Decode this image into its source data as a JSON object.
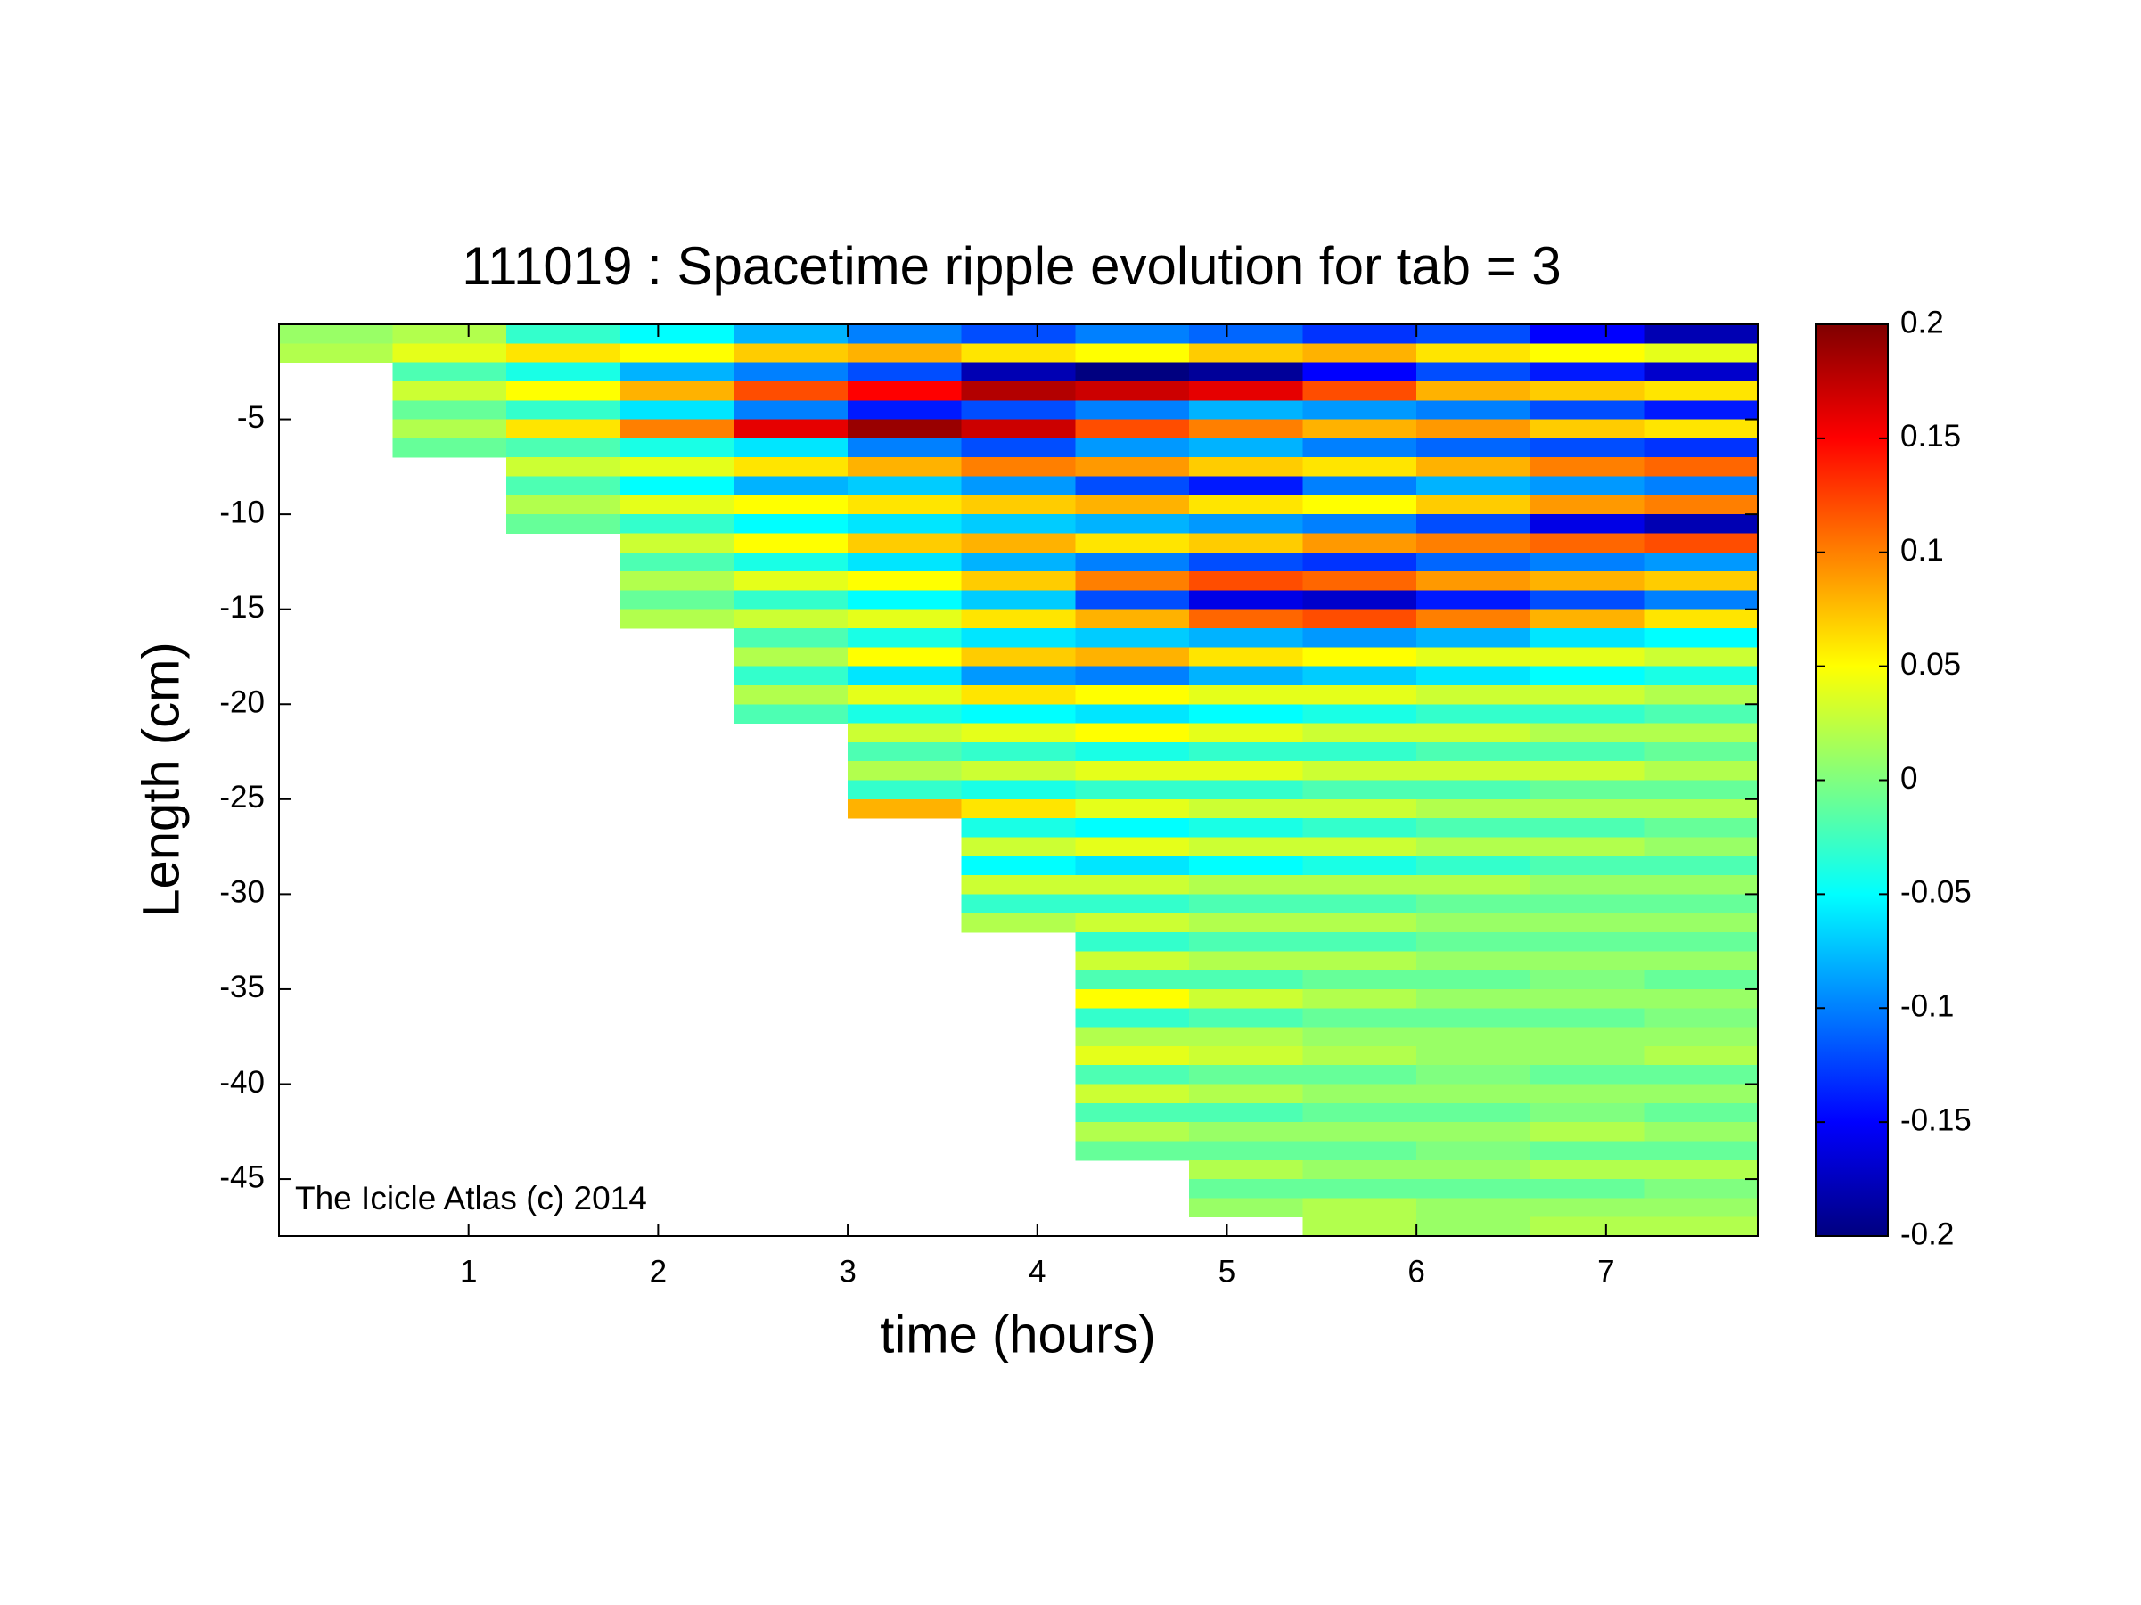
{
  "chart_data": {
    "type": "heatmap",
    "title": "111019 : Spacetime ripple evolution for tab = 3",
    "xlabel": "time (hours)",
    "ylabel": "Length (cm)",
    "annotation": "The Icicle Atlas (c) 2014",
    "colormap": "jet",
    "xlim": [
      0,
      7.8
    ],
    "ylim": [
      -48,
      0
    ],
    "xticks": [
      1,
      2,
      3,
      4,
      5,
      6,
      7
    ],
    "yticks": [
      -45,
      -40,
      -35,
      -30,
      -25,
      -20,
      -15,
      -10,
      -5
    ],
    "clim": [
      -0.2,
      0.2
    ],
    "cticks": [
      0.2,
      0.15,
      0.1,
      0.05,
      0,
      -0.05,
      -0.1,
      -0.15,
      -0.2
    ],
    "x_edges": [
      0,
      0.6,
      1.2,
      1.8,
      2.4,
      3,
      3.6,
      4.2,
      4.8,
      5.4,
      6,
      6.6,
      7.2,
      7.8
    ],
    "y_edges": [
      0,
      -1,
      -2,
      -3,
      -4,
      -5,
      -6,
      -7,
      -8,
      -9,
      -10,
      -11,
      -12,
      -13,
      -14,
      -15,
      -16,
      -17,
      -18,
      -19,
      -20,
      -21,
      -22,
      -23,
      -24,
      -25,
      -26,
      -27,
      -28,
      -29,
      -30,
      -31,
      -32,
      -33,
      -34,
      -35,
      -36,
      -37,
      -38,
      -39,
      -40,
      -41,
      -42,
      -43,
      -44,
      -45,
      -46,
      -47,
      -48
    ],
    "z": [
      [
        0.01,
        0.02,
        -0.03,
        -0.05,
        -0.08,
        -0.1,
        -0.12,
        -0.1,
        -0.11,
        -0.13,
        -0.12,
        -0.15,
        -0.18
      ],
      [
        0.02,
        0.04,
        0.06,
        0.05,
        0.07,
        0.08,
        0.06,
        0.05,
        0.07,
        0.08,
        0.06,
        0.05,
        0.04
      ],
      [
        null,
        -0.02,
        -0.04,
        -0.08,
        -0.1,
        -0.12,
        -0.18,
        -0.2,
        -0.19,
        -0.15,
        -0.12,
        -0.14,
        -0.17
      ],
      [
        null,
        0.03,
        0.05,
        0.08,
        0.12,
        0.15,
        0.18,
        0.17,
        0.16,
        0.12,
        0.08,
        0.07,
        0.06
      ],
      [
        null,
        -0.01,
        -0.03,
        -0.06,
        -0.1,
        -0.14,
        -0.12,
        -0.1,
        -0.08,
        -0.09,
        -0.1,
        -0.12,
        -0.14
      ],
      [
        null,
        0.02,
        0.06,
        0.1,
        0.16,
        0.19,
        0.17,
        0.12,
        0.1,
        0.08,
        0.09,
        0.07,
        0.06
      ],
      [
        null,
        -0.01,
        -0.02,
        -0.04,
        -0.06,
        -0.1,
        -0.12,
        -0.09,
        -0.08,
        -0.1,
        -0.11,
        -0.12,
        -0.13
      ],
      [
        null,
        null,
        0.03,
        0.04,
        0.06,
        0.08,
        0.1,
        0.09,
        0.07,
        0.06,
        0.08,
        0.1,
        0.11
      ],
      [
        null,
        null,
        -0.02,
        -0.05,
        -0.08,
        -0.07,
        -0.09,
        -0.12,
        -0.14,
        -0.1,
        -0.08,
        -0.09,
        -0.1
      ],
      [
        null,
        null,
        0.02,
        0.04,
        0.05,
        0.06,
        0.07,
        0.08,
        0.06,
        0.05,
        0.07,
        0.09,
        0.1
      ],
      [
        null,
        null,
        -0.01,
        -0.03,
        -0.05,
        -0.06,
        -0.07,
        -0.08,
        -0.09,
        -0.1,
        -0.12,
        -0.16,
        -0.18
      ],
      [
        null,
        null,
        null,
        0.03,
        0.05,
        0.07,
        0.08,
        0.06,
        0.07,
        0.09,
        0.1,
        0.11,
        0.12
      ],
      [
        null,
        null,
        null,
        -0.02,
        -0.04,
        -0.06,
        -0.08,
        -0.1,
        -0.12,
        -0.13,
        -0.11,
        -0.1,
        -0.09
      ],
      [
        null,
        null,
        null,
        0.02,
        0.04,
        0.05,
        0.07,
        0.1,
        0.12,
        0.11,
        0.09,
        0.08,
        0.07
      ],
      [
        null,
        null,
        null,
        -0.01,
        -0.03,
        -0.05,
        -0.07,
        -0.12,
        -0.16,
        -0.17,
        -0.14,
        -0.12,
        -0.1
      ],
      [
        null,
        null,
        null,
        0.02,
        0.03,
        0.04,
        0.06,
        0.08,
        0.11,
        0.12,
        0.1,
        0.08,
        0.06
      ],
      [
        null,
        null,
        null,
        null,
        -0.02,
        -0.04,
        -0.06,
        -0.07,
        -0.08,
        -0.09,
        -0.08,
        -0.06,
        -0.05
      ],
      [
        null,
        null,
        null,
        null,
        0.02,
        0.05,
        0.07,
        0.08,
        0.06,
        0.05,
        0.04,
        0.04,
        0.03
      ],
      [
        null,
        null,
        null,
        null,
        -0.03,
        -0.06,
        -0.09,
        -0.1,
        -0.08,
        -0.07,
        -0.06,
        -0.05,
        -0.04
      ],
      [
        null,
        null,
        null,
        null,
        0.02,
        0.04,
        0.06,
        0.05,
        0.04,
        0.04,
        0.03,
        0.03,
        0.02
      ],
      [
        null,
        null,
        null,
        null,
        -0.02,
        -0.04,
        -0.05,
        -0.06,
        -0.05,
        -0.04,
        -0.03,
        -0.03,
        -0.02
      ],
      [
        null,
        null,
        null,
        null,
        null,
        0.03,
        0.04,
        0.05,
        0.04,
        0.03,
        0.03,
        0.02,
        0.02
      ],
      [
        null,
        null,
        null,
        null,
        null,
        -0.02,
        -0.03,
        -0.04,
        -0.03,
        -0.03,
        -0.02,
        -0.02,
        -0.01
      ],
      [
        null,
        null,
        null,
        null,
        null,
        0.02,
        0.03,
        0.04,
        0.04,
        0.03,
        0.03,
        0.03,
        0.02
      ],
      [
        null,
        null,
        null,
        null,
        null,
        -0.03,
        -0.04,
        -0.03,
        -0.03,
        -0.02,
        -0.02,
        -0.01,
        -0.01
      ],
      [
        null,
        null,
        null,
        null,
        null,
        0.08,
        0.06,
        0.04,
        0.03,
        0.03,
        0.02,
        0.02,
        0.02
      ],
      [
        null,
        null,
        null,
        null,
        null,
        null,
        -0.04,
        -0.05,
        -0.04,
        -0.03,
        -0.02,
        -0.02,
        -0.01
      ],
      [
        null,
        null,
        null,
        null,
        null,
        null,
        0.03,
        0.04,
        0.03,
        0.03,
        0.02,
        0.02,
        0.01
      ],
      [
        null,
        null,
        null,
        null,
        null,
        null,
        -0.05,
        -0.06,
        -0.05,
        -0.04,
        -0.03,
        -0.02,
        -0.02
      ],
      [
        null,
        null,
        null,
        null,
        null,
        null,
        0.03,
        0.03,
        0.02,
        0.02,
        0.02,
        0.01,
        0.01
      ],
      [
        null,
        null,
        null,
        null,
        null,
        null,
        -0.03,
        -0.03,
        -0.02,
        -0.02,
        -0.01,
        -0.01,
        -0.01
      ],
      [
        null,
        null,
        null,
        null,
        null,
        null,
        0.02,
        0.03,
        0.02,
        0.02,
        0.01,
        0.01,
        0.01
      ],
      [
        null,
        null,
        null,
        null,
        null,
        null,
        null,
        -0.03,
        -0.02,
        -0.02,
        -0.01,
        -0.01,
        -0.01
      ],
      [
        null,
        null,
        null,
        null,
        null,
        null,
        null,
        0.03,
        0.02,
        0.02,
        0.01,
        0.01,
        0.01
      ],
      [
        null,
        null,
        null,
        null,
        null,
        null,
        null,
        -0.02,
        -0.02,
        -0.01,
        -0.01,
        0,
        -0.01
      ],
      [
        null,
        null,
        null,
        null,
        null,
        null,
        null,
        0.05,
        0.03,
        0.02,
        0.01,
        0.01,
        0.01
      ],
      [
        null,
        null,
        null,
        null,
        null,
        null,
        null,
        -0.03,
        -0.02,
        -0.01,
        -0.01,
        -0.01,
        0
      ],
      [
        null,
        null,
        null,
        null,
        null,
        null,
        null,
        0.02,
        0.02,
        0.01,
        0.01,
        0.01,
        0.01
      ],
      [
        null,
        null,
        null,
        null,
        null,
        null,
        null,
        0.04,
        0.03,
        0.02,
        0.01,
        0.01,
        0.02
      ],
      [
        null,
        null,
        null,
        null,
        null,
        null,
        null,
        -0.02,
        -0.01,
        -0.01,
        0,
        -0.01,
        -0.01
      ],
      [
        null,
        null,
        null,
        null,
        null,
        null,
        null,
        0.03,
        0.02,
        0.01,
        0.01,
        0.01,
        0.01
      ],
      [
        null,
        null,
        null,
        null,
        null,
        null,
        null,
        -0.02,
        -0.02,
        -0.01,
        -0.01,
        0,
        -0.01
      ],
      [
        null,
        null,
        null,
        null,
        null,
        null,
        null,
        0.02,
        0.01,
        0.01,
        0.01,
        0.02,
        0.01
      ],
      [
        null,
        null,
        null,
        null,
        null,
        null,
        null,
        -0.01,
        -0.01,
        -0.01,
        0,
        -0.01,
        -0.01
      ],
      [
        null,
        null,
        null,
        null,
        null,
        null,
        null,
        null,
        0.02,
        0.01,
        0.01,
        0.02,
        0.02
      ],
      [
        null,
        null,
        null,
        null,
        null,
        null,
        null,
        null,
        -0.01,
        -0.01,
        -0.01,
        -0.01,
        0
      ],
      [
        null,
        null,
        null,
        null,
        null,
        null,
        null,
        null,
        0.01,
        0.02,
        0.01,
        0.01,
        0.01
      ],
      [
        null,
        null,
        null,
        null,
        null,
        null,
        null,
        null,
        null,
        0.02,
        0.01,
        0.02,
        0.02
      ]
    ]
  }
}
